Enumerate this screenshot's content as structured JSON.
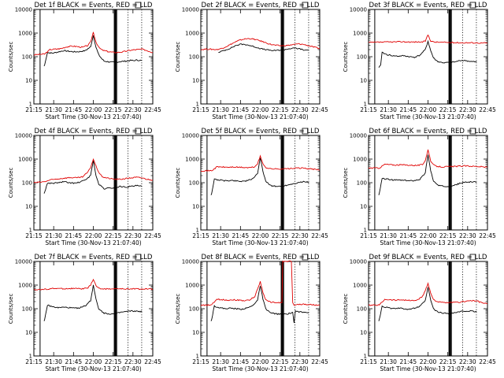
{
  "colors": {
    "events": "#000000",
    "lld": "#e00000",
    "axis": "#000000"
  },
  "shared": {
    "ylabel": "Counts/sec",
    "xlabel": "Start Time (30-Nov-13 21:07:40)",
    "x_ticks": [
      "21:15",
      "21:30",
      "21:45",
      "22:00",
      "22:15",
      "22:30",
      "22:45"
    ],
    "y_ticks": [
      "1",
      "10",
      "100",
      "1000",
      "10000"
    ]
  },
  "chart_data": [
    {
      "type": "line",
      "title": "Det 1f BLACK = Events, RED = LLD",
      "ylim": [
        1,
        10000
      ],
      "xlim_minutes": [
        0,
        44
      ],
      "series": [
        {
          "name": "Events",
          "x": [
            3.8,
            4.0,
            5,
            7,
            9,
            11,
            13,
            15,
            17,
            19,
            21,
            22,
            23,
            24,
            25,
            26,
            28,
            30,
            32,
            34,
            36,
            37,
            38,
            39,
            40
          ],
          "y": [
            40,
            45,
            150,
            140,
            160,
            180,
            170,
            160,
            165,
            180,
            260,
            800,
            250,
            120,
            85,
            65,
            60,
            58,
            62,
            65,
            70,
            68,
            72,
            70,
            70
          ]
        },
        {
          "name": "LLD",
          "x": [
            0,
            2,
            4,
            6,
            8,
            10,
            12,
            14,
            16,
            18,
            20,
            21,
            22,
            23,
            24,
            25,
            26,
            28,
            30,
            32,
            34,
            36,
            38,
            40,
            42,
            44
          ],
          "y": [
            120,
            125,
            130,
            200,
            210,
            220,
            260,
            280,
            270,
            250,
            300,
            420,
            1100,
            420,
            250,
            200,
            180,
            160,
            150,
            155,
            170,
            190,
            200,
            210,
            180,
            150
          ]
        }
      ]
    },
    {
      "type": "line",
      "title": "Det 2f BLACK = Events, RED = LLD",
      "ylim": [
        1,
        10000
      ],
      "xlim_minutes": [
        0,
        44
      ],
      "series": [
        {
          "name": "Events",
          "x": [
            6.5,
            7,
            9,
            11,
            13,
            15,
            17,
            19,
            21,
            23,
            25,
            27,
            29,
            31,
            33,
            35,
            37,
            38,
            40
          ],
          "y": [
            150,
            160,
            190,
            230,
            300,
            340,
            320,
            280,
            240,
            210,
            190,
            180,
            190,
            200,
            220,
            230,
            210,
            190,
            190
          ]
        },
        {
          "name": "LLD",
          "x": [
            0,
            2,
            4,
            6,
            8,
            10,
            12,
            14,
            16,
            18,
            20,
            22,
            24,
            26,
            28,
            30,
            32,
            34,
            36,
            38,
            40,
            42,
            44
          ],
          "y": [
            200,
            210,
            205,
            200,
            230,
            290,
            380,
            480,
            560,
            590,
            540,
            470,
            390,
            330,
            300,
            290,
            300,
            320,
            350,
            330,
            290,
            250,
            220
          ]
        }
      ]
    },
    {
      "type": "line",
      "title": "Det 3f BLACK = Events, RED = LLD",
      "ylim": [
        1,
        10000
      ],
      "xlim_minutes": [
        0,
        44
      ],
      "series": [
        {
          "name": "Events",
          "x": [
            3.8,
            4,
            4.5,
            5,
            7,
            9,
            11,
            13,
            15,
            17,
            19,
            21,
            22,
            23,
            24,
            25,
            26,
            28,
            30,
            32,
            34,
            36,
            38,
            40
          ],
          "y": [
            35,
            38,
            45,
            150,
            120,
            110,
            105,
            110,
            100,
            95,
            115,
            200,
            450,
            180,
            90,
            70,
            60,
            55,
            58,
            60,
            70,
            68,
            62,
            60
          ]
        },
        {
          "name": "LLD",
          "x": [
            0,
            4,
            8,
            12,
            16,
            20,
            21,
            22,
            23,
            24,
            26,
            30,
            34,
            38,
            42,
            44
          ],
          "y": [
            400,
            410,
            420,
            430,
            420,
            420,
            460,
            850,
            470,
            420,
            410,
            400,
            390,
            390,
            380,
            380
          ]
        }
      ]
    },
    {
      "type": "line",
      "title": "Det 4f BLACK = Events, RED = LLD",
      "ylim": [
        1,
        10000
      ],
      "xlim_minutes": [
        0,
        44
      ],
      "series": [
        {
          "name": "Events",
          "x": [
            3.8,
            4,
            5,
            7,
            9,
            11,
            13,
            15,
            17,
            19,
            21,
            22,
            23,
            24,
            25,
            26,
            28,
            30,
            32,
            34,
            36,
            38,
            40
          ],
          "y": [
            35,
            40,
            95,
            95,
            100,
            110,
            100,
            95,
            105,
            130,
            200,
            900,
            200,
            85,
            70,
            55,
            60,
            60,
            70,
            65,
            70,
            75,
            70
          ]
        },
        {
          "name": "LLD",
          "x": [
            0,
            2,
            4,
            6,
            8,
            10,
            12,
            14,
            16,
            18,
            20,
            21,
            22,
            23,
            24,
            25,
            26,
            28,
            30,
            32,
            34,
            36,
            38,
            40,
            42,
            44
          ],
          "y": [
            100,
            105,
            110,
            130,
            140,
            150,
            160,
            165,
            160,
            175,
            280,
            450,
            1000,
            500,
            280,
            190,
            170,
            150,
            140,
            140,
            150,
            160,
            170,
            160,
            140,
            130
          ]
        }
      ]
    },
    {
      "type": "line",
      "title": "Det 5f BLACK = Events, RED = LLD",
      "ylim": [
        1,
        10000
      ],
      "xlim_minutes": [
        0,
        44
      ],
      "series": [
        {
          "name": "Events",
          "x": [
            3.8,
            4,
            5,
            7,
            9,
            11,
            13,
            15,
            17,
            19,
            21,
            22,
            23,
            24,
            25,
            26,
            28,
            30,
            32,
            34,
            36,
            38,
            40
          ],
          "y": [
            30,
            35,
            140,
            130,
            120,
            125,
            120,
            115,
            120,
            140,
            250,
            1100,
            300,
            120,
            90,
            75,
            70,
            70,
            80,
            90,
            100,
            110,
            105
          ]
        },
        {
          "name": "LLD",
          "x": [
            0,
            2,
            4,
            6,
            8,
            10,
            12,
            14,
            16,
            18,
            20,
            21,
            22,
            23,
            24,
            25,
            26,
            28,
            30,
            32,
            34,
            36,
            38,
            40,
            42,
            44
          ],
          "y": [
            320,
            320,
            320,
            470,
            460,
            450,
            460,
            450,
            440,
            430,
            470,
            650,
            1300,
            640,
            450,
            400,
            390,
            380,
            385,
            390,
            400,
            420,
            410,
            390,
            370,
            340
          ]
        }
      ]
    },
    {
      "type": "line",
      "title": "Det 6f BLACK = Events, RED = LLD",
      "ylim": [
        1,
        10000
      ],
      "xlim_minutes": [
        0,
        44
      ],
      "series": [
        {
          "name": "Events",
          "x": [
            3.8,
            4,
            5,
            7,
            9,
            11,
            13,
            15,
            17,
            19,
            21,
            22,
            23,
            24,
            25,
            26,
            28,
            30,
            32,
            34,
            36,
            38,
            40
          ],
          "y": [
            30,
            35,
            150,
            140,
            130,
            130,
            125,
            120,
            125,
            140,
            260,
            1600,
            320,
            120,
            90,
            75,
            70,
            72,
            80,
            95,
            105,
            110,
            105
          ]
        },
        {
          "name": "LLD",
          "x": [
            0,
            2,
            4,
            6,
            8,
            10,
            12,
            14,
            16,
            18,
            20,
            21,
            22,
            23,
            24,
            25,
            26,
            28,
            30,
            32,
            34,
            36,
            38,
            40,
            42,
            44
          ],
          "y": [
            420,
            420,
            420,
            600,
            580,
            560,
            570,
            560,
            550,
            540,
            580,
            900,
            2500,
            850,
            560,
            500,
            480,
            470,
            480,
            490,
            500,
            510,
            500,
            490,
            470,
            450
          ]
        }
      ]
    },
    {
      "type": "line",
      "title": "Det 7f BLACK = Events, RED = LLD",
      "ylim": [
        1,
        10000
      ],
      "xlim_minutes": [
        0,
        44
      ],
      "series": [
        {
          "name": "Events",
          "x": [
            3.8,
            4,
            5,
            7,
            9,
            11,
            13,
            15,
            17,
            19,
            21,
            22,
            23,
            24,
            25,
            26,
            28,
            30,
            32,
            34,
            36,
            38,
            40
          ],
          "y": [
            30,
            35,
            140,
            120,
            110,
            115,
            110,
            105,
            110,
            130,
            220,
            1000,
            260,
            100,
            80,
            65,
            60,
            60,
            70,
            75,
            80,
            78,
            75
          ]
        },
        {
          "name": "LLD",
          "x": [
            0,
            2,
            4,
            6,
            8,
            10,
            12,
            14,
            16,
            18,
            20,
            21,
            22,
            23,
            24,
            25,
            26,
            28,
            30,
            32,
            34,
            36,
            38,
            40,
            42,
            44
          ],
          "y": [
            650,
            640,
            660,
            700,
            720,
            710,
            700,
            720,
            710,
            700,
            750,
            1000,
            1800,
            950,
            720,
            700,
            690,
            690,
            700,
            690,
            680,
            700,
            690,
            680,
            680,
            670
          ]
        }
      ]
    },
    {
      "type": "line",
      "title": "Det 8f BLACK = Events, RED = LLD",
      "ylim": [
        1,
        10000
      ],
      "xlim_minutes": [
        0,
        44
      ],
      "series": [
        {
          "name": "Events",
          "x": [
            3.8,
            4,
            5,
            7,
            9,
            11,
            13,
            15,
            17,
            19,
            21,
            22,
            23,
            24,
            25,
            26,
            28,
            30,
            32,
            34,
            34.5,
            35,
            36,
            37,
            38,
            40
          ],
          "y": [
            30,
            35,
            130,
            110,
            100,
            105,
            100,
            95,
            105,
            130,
            230,
            950,
            250,
            100,
            80,
            65,
            60,
            58,
            60,
            70,
            25,
            80,
            75,
            72,
            70,
            70
          ]
        },
        {
          "name": "LLD",
          "x": [
            0,
            2,
            4,
            6,
            8,
            10,
            12,
            14,
            16,
            18,
            20,
            21,
            22,
            23,
            24,
            25,
            26,
            28,
            30,
            30.3,
            33.5,
            34,
            34.5,
            35,
            36,
            38,
            40,
            42,
            44
          ],
          "y": [
            140,
            140,
            145,
            250,
            240,
            230,
            240,
            230,
            220,
            230,
            330,
            700,
            1400,
            500,
            240,
            200,
            190,
            180,
            180,
            10000,
            10000,
            180,
            140,
            150,
            150,
            155,
            150,
            145,
            140
          ]
        }
      ]
    },
    {
      "type": "line",
      "title": "Det 9f BLACK = Events, RED = LLD",
      "ylim": [
        1,
        10000
      ],
      "xlim_minutes": [
        0,
        44
      ],
      "series": [
        {
          "name": "Events",
          "x": [
            3.8,
            4,
            5,
            7,
            9,
            11,
            13,
            15,
            17,
            19,
            21,
            22,
            23,
            24,
            25,
            26,
            28,
            30,
            32,
            34,
            36,
            38,
            40
          ],
          "y": [
            30,
            35,
            130,
            110,
            100,
            105,
            100,
            95,
            105,
            125,
            220,
            800,
            230,
            100,
            80,
            70,
            65,
            62,
            68,
            75,
            80,
            78,
            75
          ]
        },
        {
          "name": "LLD",
          "x": [
            0,
            2,
            4,
            6,
            8,
            10,
            12,
            14,
            16,
            18,
            20,
            21,
            22,
            23,
            24,
            25,
            26,
            28,
            30,
            32,
            34,
            36,
            38,
            40,
            42,
            44
          ],
          "y": [
            140,
            140,
            145,
            250,
            240,
            230,
            240,
            230,
            220,
            230,
            330,
            600,
            1200,
            450,
            250,
            210,
            190,
            180,
            180,
            185,
            190,
            210,
            220,
            210,
            180,
            160
          ]
        }
      ]
    }
  ]
}
